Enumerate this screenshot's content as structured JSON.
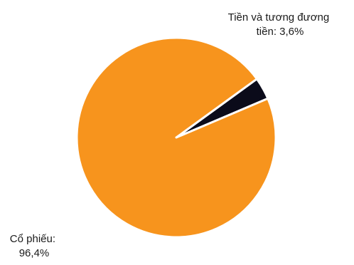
{
  "chart_data": {
    "type": "pie",
    "title": "",
    "slices": [
      {
        "label_lines": [
          "Cổ phiếu:",
          "96,4%"
        ],
        "value": 96.4,
        "color": "#F7941D"
      },
      {
        "label_lines": [
          "Tiền và tương đương",
          "tiền: 3,6%"
        ],
        "value": 3.6,
        "color": "#0B0B1A"
      }
    ],
    "legend": "none",
    "slice_separator_color": "#ffffff"
  }
}
